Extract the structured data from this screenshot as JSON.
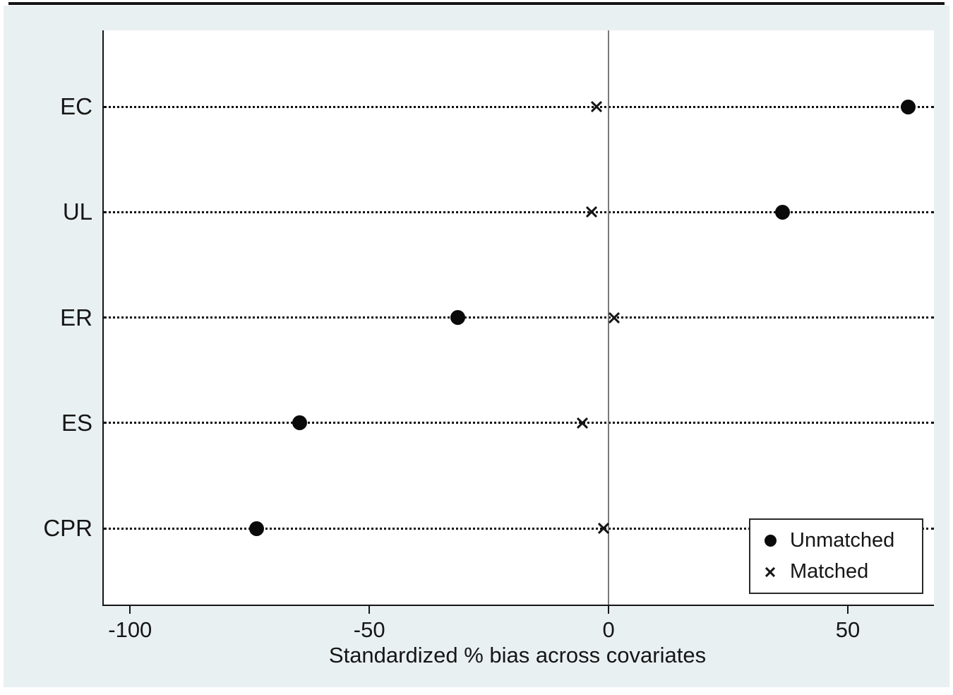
{
  "figure": {
    "background_color": "#e9f0f1",
    "plot_background_color": "#ffffff",
    "axis_color": "#161616",
    "zero_line_color": "#7a7a7a",
    "marker_color": "#0a0a0a"
  },
  "chart_data": {
    "type": "scatter",
    "subtype": "horizontal-dot-plot",
    "title": "",
    "xlabel": "Standardized % bias across covariates",
    "ylabel": "",
    "categories": [
      "EC",
      "UL",
      "ER",
      "ES",
      "CPR"
    ],
    "x_ticks": [
      -100,
      -50,
      0,
      50
    ],
    "x_tick_labels": [
      "-100",
      "-50",
      "0",
      "50"
    ],
    "xlim": [
      -105.5,
      68
    ],
    "grid": "dotted-horizontal-per-category",
    "zero_reference_line": 0,
    "legend_position": "inside-bottom-right",
    "series": [
      {
        "name": "Unmatched",
        "marker": "filled-circle",
        "values": [
          62.6,
          36.3,
          -31.5,
          -64.5,
          -73.5
        ]
      },
      {
        "name": "Matched",
        "marker": "x-cross",
        "values": [
          -2.5,
          -3.6,
          1.1,
          -5.4,
          -1.1
        ]
      }
    ]
  },
  "legend": {
    "items": [
      {
        "label": "Unmatched",
        "marker": "filled-circle"
      },
      {
        "label": "Matched",
        "marker": "x-cross"
      }
    ]
  }
}
